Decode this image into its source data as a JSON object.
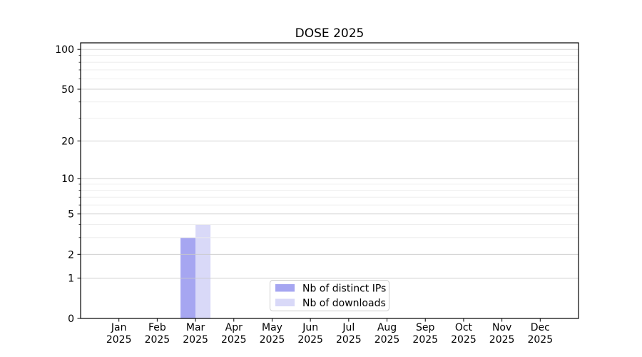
{
  "page": {
    "background": "#ffffff"
  },
  "chart_data": {
    "type": "bar",
    "title": "DOSE 2025",
    "categories": [
      "Jan",
      "Feb",
      "Mar",
      "Apr",
      "May",
      "Jun",
      "Jul",
      "Aug",
      "Sep",
      "Oct",
      "Nov",
      "Dec"
    ],
    "category_year": "2025",
    "series": [
      {
        "name": "Nb of distinct IPs",
        "color": "#a6a6f1",
        "values": [
          0,
          0,
          3,
          0,
          0,
          0,
          0,
          0,
          0,
          0,
          0,
          0
        ]
      },
      {
        "name": "Nb of downloads",
        "color": "#d9d9f8",
        "values": [
          0,
          0,
          4,
          0,
          0,
          0,
          0,
          0,
          0,
          0,
          0,
          0
        ]
      }
    ],
    "xlabel": "",
    "ylabel": "",
    "yscale": "log1p",
    "ylim": [
      0,
      100
    ],
    "y_render_max": 112,
    "y_major_ticks": [
      0,
      1,
      2,
      5,
      10,
      20,
      50,
      100
    ],
    "y_minor_ticks": [
      3,
      4,
      6,
      7,
      8,
      9,
      30,
      40,
      60,
      70,
      80,
      90
    ],
    "grid": "on",
    "legend_position": "lower center",
    "colors": {
      "major_grid": "#c9c9c9",
      "minor_grid": "#ebebeb",
      "spine": "#000000",
      "text": "#000000",
      "legend_border": "#cccccc",
      "legend_fill": "#ffffff"
    }
  }
}
